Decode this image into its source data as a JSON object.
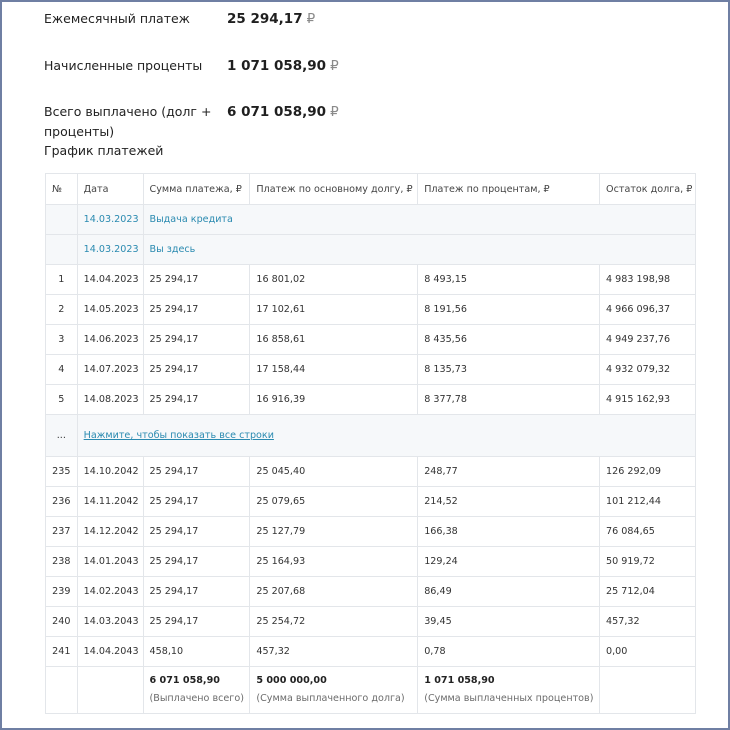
{
  "summary": {
    "monthly_label": "Ежемесячный платеж",
    "monthly_value": "25 294,17",
    "interest_label": "Начисленные проценты",
    "interest_value": "1 071 058,90",
    "total_label_line1": "Всего выплачено (долг +",
    "total_label_line2": "проценты)",
    "total_value": "6 071 058,90",
    "currency": "₽"
  },
  "schedule_title": "График платежей",
  "table": {
    "headers": [
      "№",
      "Дата",
      "Сумма платежа, ₽",
      "Платеж по основному долгу, ₽",
      "Платеж по процентам, ₽",
      "Остаток долга, ₽"
    ],
    "events": [
      {
        "date": "14.03.2023",
        "text": "Выдача кредита"
      },
      {
        "date": "14.03.2023",
        "text": "Вы здесь"
      }
    ],
    "rows_top": [
      [
        "1",
        "14.04.2023",
        "25 294,17",
        "16 801,02",
        "8 493,15",
        "4 983 198,98"
      ],
      [
        "2",
        "14.05.2023",
        "25 294,17",
        "17 102,61",
        "8 191,56",
        "4 966 096,37"
      ],
      [
        "3",
        "14.06.2023",
        "25 294,17",
        "16 858,61",
        "8 435,56",
        "4 949 237,76"
      ],
      [
        "4",
        "14.07.2023",
        "25 294,17",
        "17 158,44",
        "8 135,73",
        "4 932 079,32"
      ],
      [
        "5",
        "14.08.2023",
        "25 294,17",
        "16 916,39",
        "8 377,78",
        "4 915 162,93"
      ]
    ],
    "ellipsis": "...",
    "show_all": "Нажмите, чтобы показать все строки",
    "rows_bottom": [
      [
        "235",
        "14.10.2042",
        "25 294,17",
        "25 045,40",
        "248,77",
        "126 292,09"
      ],
      [
        "236",
        "14.11.2042",
        "25 294,17",
        "25 079,65",
        "214,52",
        "101 212,44"
      ],
      [
        "237",
        "14.12.2042",
        "25 294,17",
        "25 127,79",
        "166,38",
        "76 084,65"
      ],
      [
        "238",
        "14.01.2043",
        "25 294,17",
        "25 164,93",
        "129,24",
        "50 919,72"
      ],
      [
        "239",
        "14.02.2043",
        "25 294,17",
        "25 207,68",
        "86,49",
        "25 712,04"
      ],
      [
        "240",
        "14.03.2043",
        "25 294,17",
        "25 254,72",
        "39,45",
        "457,32"
      ],
      [
        "241",
        "14.04.2043",
        "458,10",
        "457,32",
        "0,78",
        "0,00"
      ]
    ],
    "totals": {
      "paid_value": "6 071 058,90",
      "paid_caption": "(Выплачено всего)",
      "principal_value": "5 000 000,00",
      "principal_caption": "(Сумма выплаченного долга)",
      "interest_value": "1 071 058,90",
      "interest_caption": "(Сумма выплаченных процентов)"
    }
  }
}
